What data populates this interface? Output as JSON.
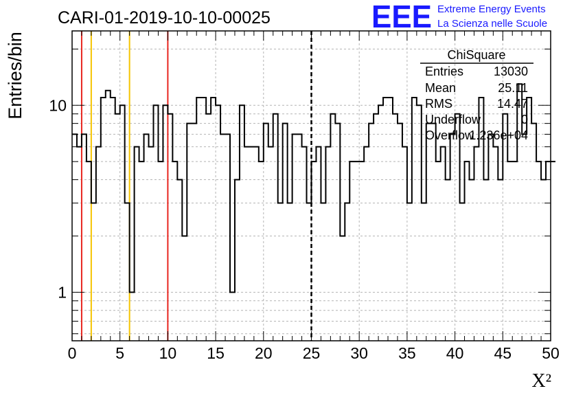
{
  "header": {
    "run_title": "CARI-01-2019-10-10-00025",
    "logo_mark": "EEE",
    "logo_line1": "Extreme Energy Events",
    "logo_line2": "La Scienza nelle Scuole"
  },
  "stats_box": {
    "title": "ChiSquare",
    "rows": [
      {
        "label": "Entries",
        "value": "13030"
      },
      {
        "label": "Mean",
        "value": "25.11"
      },
      {
        "label": "RMS",
        "value": "14.47"
      },
      {
        "label": "Underflow",
        "value": "0"
      },
      {
        "label": "Overflow",
        "value": "1.236e+04"
      }
    ]
  },
  "colors": {
    "red_line": "#e8251f",
    "yellow_line": "#f5c400",
    "histogram": "#000000",
    "grid": "#b4b4b4",
    "logo": "#1a1aff"
  },
  "chart_data": {
    "type": "histogram",
    "xlabel": "X²",
    "ylabel": "Entries/bin",
    "xlim": [
      0,
      50
    ],
    "ylim": [
      0.55,
      25
    ],
    "yscale": "log",
    "grid": true,
    "legend": "top-right stats box",
    "xticks": [
      0,
      5,
      10,
      15,
      20,
      25,
      30,
      35,
      40,
      45,
      50
    ],
    "yticks": [
      1,
      10
    ],
    "bin_width": 0.5,
    "bins_start": 0,
    "counts": [
      7,
      6,
      7,
      5,
      3,
      6,
      11,
      12,
      11,
      9,
      10,
      3,
      1,
      6,
      5,
      7,
      6,
      10,
      5,
      10,
      9,
      5,
      4,
      2,
      8,
      8,
      11,
      11,
      9,
      11,
      10,
      7,
      7,
      1,
      4,
      10,
      6,
      6,
      6,
      5,
      8,
      6,
      9,
      3,
      8,
      3,
      7,
      7,
      6,
      3,
      5,
      6,
      3,
      6,
      9,
      8,
      2,
      3,
      5,
      5,
      5,
      6,
      8,
      9,
      10,
      11,
      11,
      9,
      8,
      6,
      3,
      11,
      10,
      3,
      8,
      8,
      5,
      6,
      4,
      7,
      9,
      3,
      5,
      4,
      6,
      11,
      4,
      7,
      6,
      4,
      9,
      5,
      5,
      13,
      7,
      11,
      8,
      5,
      4,
      5,
      5
    ],
    "vertical_lines": [
      {
        "x": 1,
        "color": "red",
        "style": "solid"
      },
      {
        "x": 2,
        "color": "yellow",
        "style": "solid"
      },
      {
        "x": 6,
        "color": "yellow",
        "style": "solid"
      },
      {
        "x": 10,
        "color": "red",
        "style": "solid"
      },
      {
        "x": 25,
        "color": "black",
        "style": "dashed"
      }
    ]
  }
}
